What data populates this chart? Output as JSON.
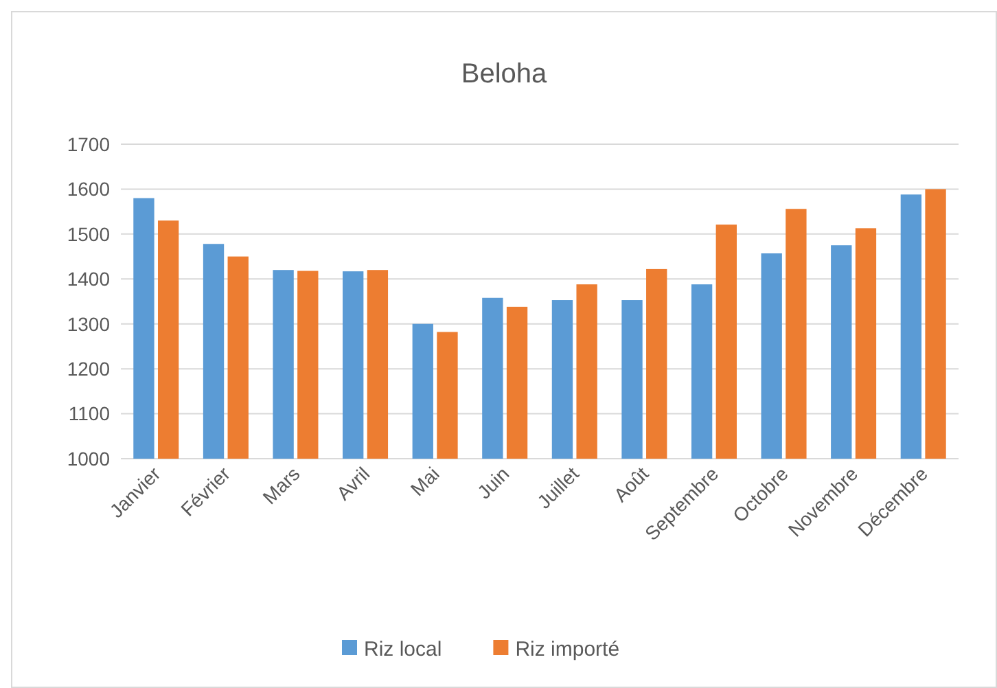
{
  "chart_data": {
    "type": "bar",
    "title": "Beloha",
    "categories": [
      "Janvier",
      "Février",
      "Mars",
      "Avril",
      "Mai",
      "Juin",
      "Juillet",
      "Août",
      "Septembre",
      "Octobre",
      "Novembre",
      "Décembre"
    ],
    "series": [
      {
        "name": "Riz local",
        "color": "#5b9bd5",
        "values": [
          1580,
          1478,
          1420,
          1417,
          1300,
          1358,
          1353,
          1353,
          1388,
          1457,
          1475,
          1588
        ]
      },
      {
        "name": "Riz importé",
        "color": "#ed7d31",
        "values": [
          1530,
          1450,
          1418,
          1420,
          1282,
          1338,
          1388,
          1422,
          1521,
          1556,
          1513,
          1600
        ]
      }
    ],
    "ylim": [
      1000,
      1700
    ],
    "yticks": [
      1000,
      1100,
      1200,
      1300,
      1400,
      1500,
      1600,
      1700
    ],
    "grid": "y",
    "legend": "bottom"
  }
}
